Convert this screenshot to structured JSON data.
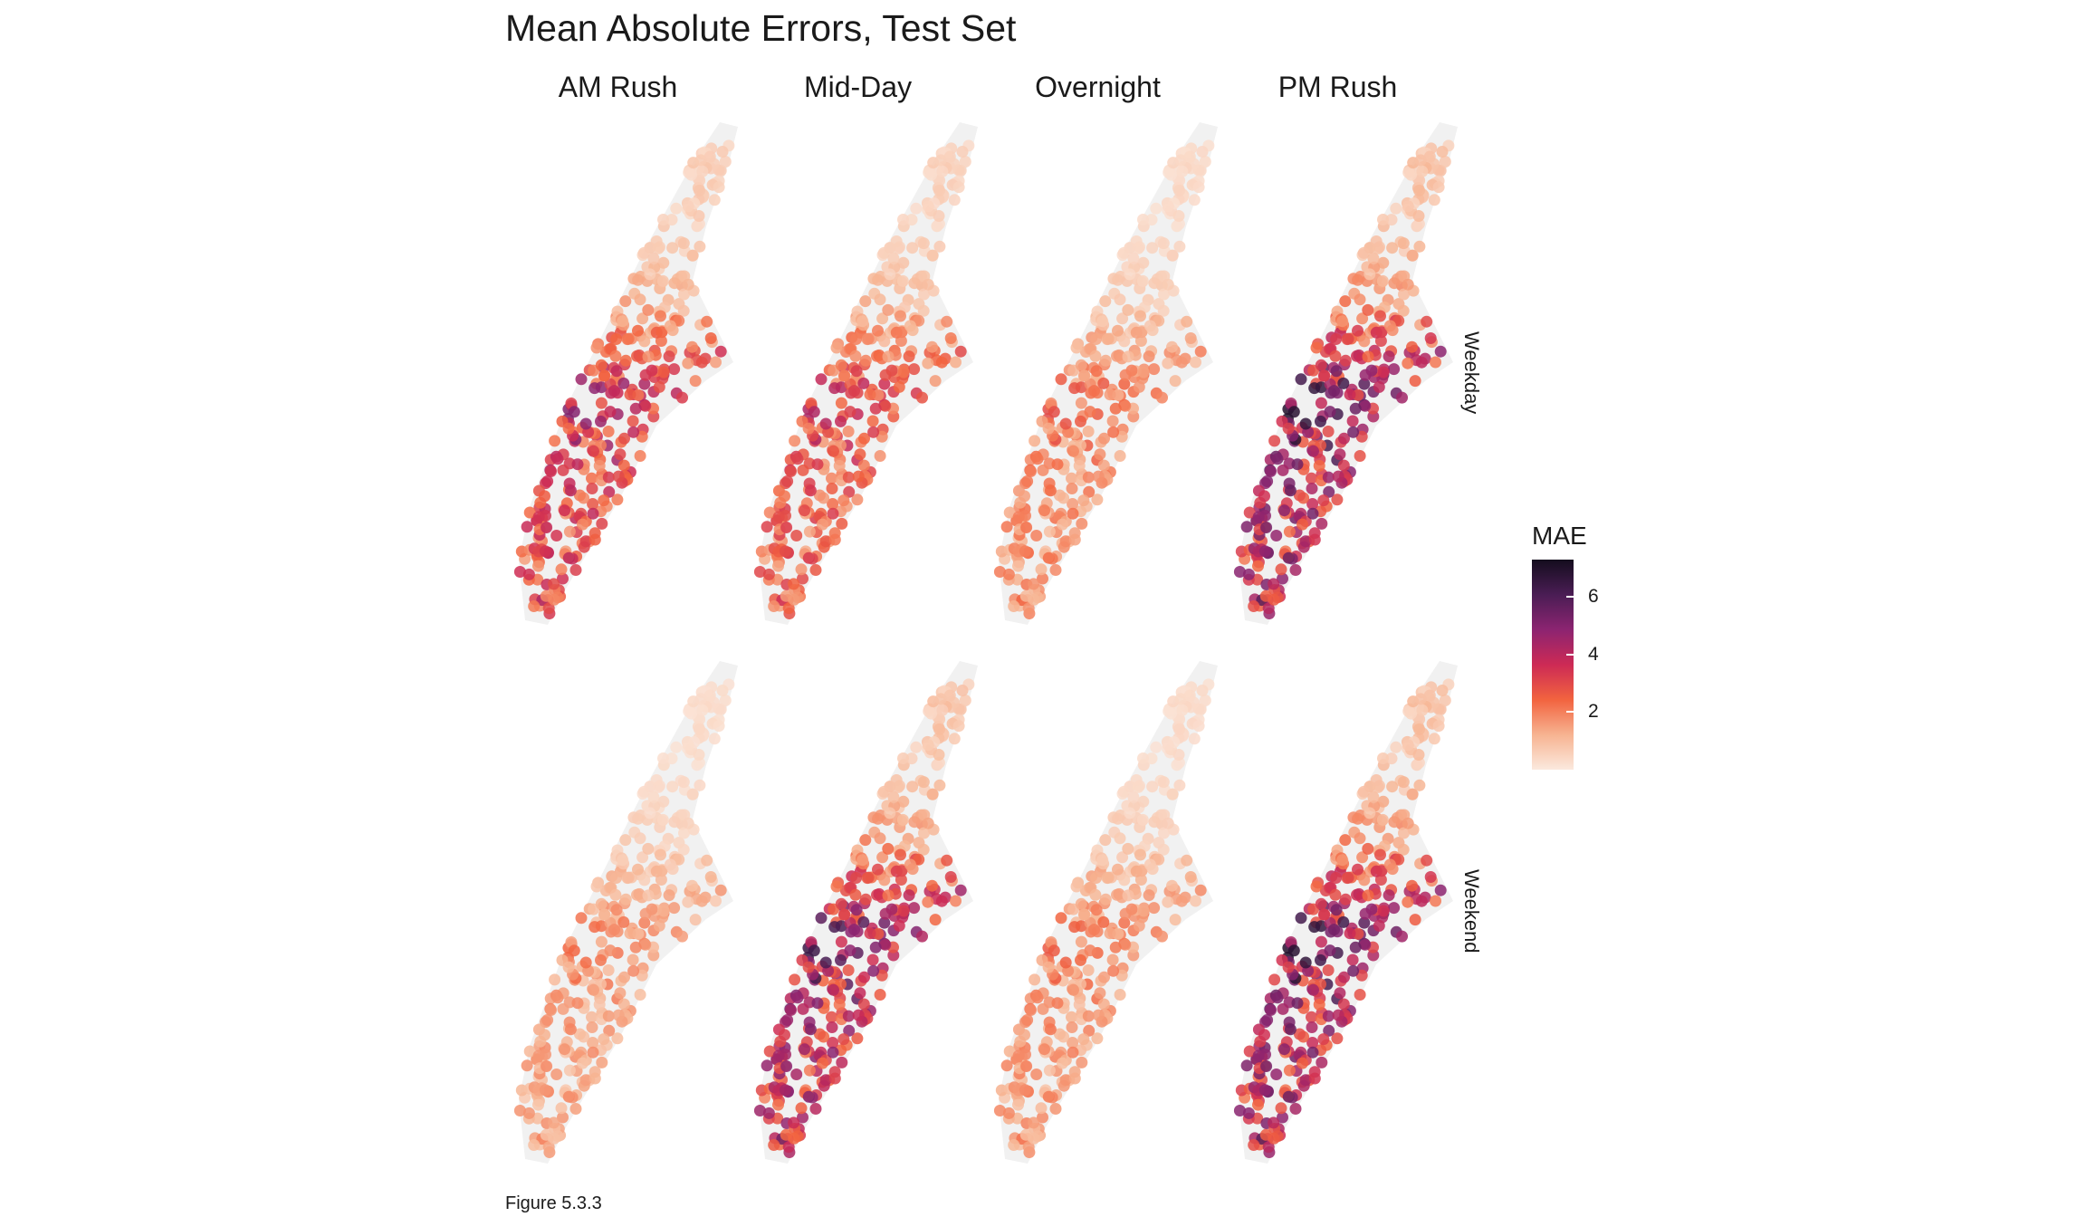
{
  "chart_data": {
    "type": "map-points",
    "title": "Mean Absolute Errors, Test Set",
    "columns": [
      "AM Rush",
      "Mid-Day",
      "Overnight",
      "PM Rush"
    ],
    "rows": [
      "Weekday",
      "Weekend"
    ],
    "legend": {
      "title": "MAE",
      "ticks": [
        {
          "value": 2,
          "label": "2"
        },
        {
          "value": 4,
          "label": "4"
        },
        {
          "value": 6,
          "label": "6"
        }
      ],
      "range": [
        0,
        7.3
      ],
      "colors": [
        "#fbe9de",
        "#f7b391",
        "#f2633f",
        "#cd2a55",
        "#8c2471",
        "#4a1d54",
        "#140d1e"
      ]
    },
    "panel_intensity": {
      "Weekday": {
        "AM Rush": 0.95,
        "Mid-Day": 0.8,
        "Overnight": 0.55,
        "PM Rush": 1.3
      },
      "Weekend": {
        "AM Rush": 0.45,
        "Mid-Day": 1.2,
        "Overnight": 0.5,
        "PM Rush": 1.3
      }
    },
    "caption": "Figure 5.3.3"
  }
}
